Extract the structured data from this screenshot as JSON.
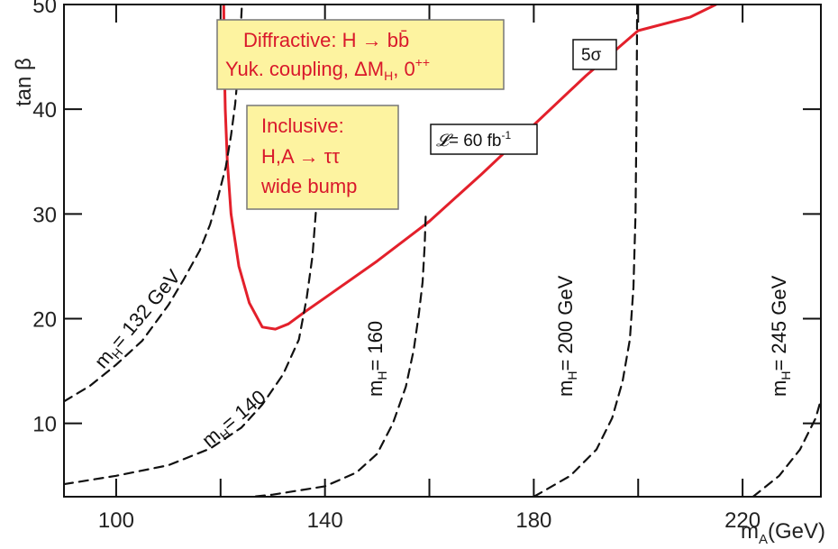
{
  "chart_data": {
    "type": "line",
    "xlabel": "m_A(GeV)",
    "ylabel": "tan β",
    "xlim": [
      90,
      235
    ],
    "ylim": [
      3,
      50
    ],
    "x_ticks": [
      100,
      140,
      180,
      220
    ],
    "y_ticks": [
      10,
      20,
      30,
      40,
      50
    ],
    "grid": false,
    "series": [
      {
        "name": "5σ",
        "style": "solid",
        "color": "#e3202b",
        "x": [
          120.6,
          120.7,
          120.9,
          121.3,
          122.0,
          123.5,
          125.5,
          128.0,
          130.5,
          133.0,
          136.0,
          140.0,
          150.0,
          160.0,
          170.0,
          180.0,
          190.0,
          200.0,
          210.0,
          214.9
        ],
        "y": [
          50,
          45,
          40,
          35,
          30,
          25,
          21.5,
          19.2,
          19.0,
          19.5,
          20.6,
          22.0,
          25.5,
          29.3,
          33.8,
          38.5,
          43.2,
          47.5,
          48.8,
          50
        ]
      },
      {
        "name": "m_H= 132 GeV",
        "style": "dashed",
        "color": "#111111",
        "x": [
          90,
          95,
          100,
          105,
          110,
          113,
          116,
          118,
          119.5,
          121,
          122,
          122.8,
          123.5,
          124.1
        ],
        "y": [
          12.1,
          13.6,
          15.6,
          17.9,
          21.3,
          23.8,
          26.5,
          29.0,
          31.6,
          34.5,
          37.5,
          40.5,
          44.5,
          50
        ]
      },
      {
        "name": "m_H= 140",
        "style": "dashed",
        "color": "#111111",
        "x": [
          90,
          100,
          110,
          118,
          124,
          128,
          132,
          135,
          136.5,
          137.6,
          138.3,
          138.8,
          139.1
        ],
        "y": [
          4.2,
          5.0,
          6.0,
          7.6,
          9.6,
          11.8,
          14.7,
          18.0,
          22.0,
          26.0,
          30.5,
          34.5,
          38.0
        ]
      },
      {
        "name": "m_H= 160",
        "style": "dashed",
        "color": "#111111",
        "x": [
          118,
          130,
          140,
          146,
          150,
          153,
          155.5,
          157,
          158,
          158.7,
          159.1,
          159.3
        ],
        "y": [
          2.6,
          3.2,
          4.0,
          5.3,
          7.1,
          10.0,
          13.5,
          17.0,
          20.5,
          23.5,
          27.0,
          30.0
        ]
      },
      {
        "name": "m_H= 200 GeV",
        "style": "dashed",
        "color": "#111111",
        "x": [
          180,
          187,
          192,
          195,
          197,
          198.4,
          199.1,
          199.5,
          199.7,
          199.8
        ],
        "y": [
          3.0,
          5.0,
          7.5,
          10.5,
          14.0,
          18.0,
          23.0,
          30.0,
          40.0,
          50.0
        ]
      },
      {
        "name": "m_H= 245 GeV",
        "style": "dashed",
        "color": "#111111",
        "x": [
          222,
          227,
          231,
          234,
          236,
          237.2,
          238.0,
          238.4,
          238.6,
          238.7
        ],
        "y": [
          3.0,
          5.0,
          7.5,
          10.5,
          14.0,
          18.0,
          23.0,
          30.0,
          40.0,
          50.0
        ]
      }
    ],
    "annotations": {
      "diffractive_box": {
        "line1": "Diffractive:   H → bb̄",
        "line2": "Yuk. coupling, ΔM",
        "line2_sub": "H",
        "line2_tail": ", 0",
        "line2_sup": "++"
      },
      "inclusive_box": {
        "line1": "Inclusive:",
        "line2": "H,A → ττ",
        "line3": "wide bump"
      },
      "sigma_label": "5σ",
      "luminosity_label": {
        "symbol": "𝓛",
        "text": "= 60 fb",
        "sup": "-1"
      },
      "curve_labels": {
        "mh132": {
          "m": "m",
          "sub": "H",
          "rest": "= 132 GeV"
        },
        "mh140": {
          "m": "m",
          "sub": "H",
          "rest": "= 140"
        },
        "mh160": {
          "m": "m",
          "sub": "H",
          "rest": "= 160"
        },
        "mh200": {
          "m": "m",
          "sub": "H",
          "rest": "= 200 GeV"
        },
        "mh245": {
          "m": "m",
          "sub": "H",
          "rest": "= 245 GeV"
        }
      },
      "x_axis_title": {
        "m": "m",
        "sub": "A",
        "rest": "(GeV)"
      },
      "y_axis_title": "tan β"
    },
    "colors": {
      "box_fill": "#fdf3a0",
      "red": "#e3202b",
      "black": "#111111"
    }
  }
}
